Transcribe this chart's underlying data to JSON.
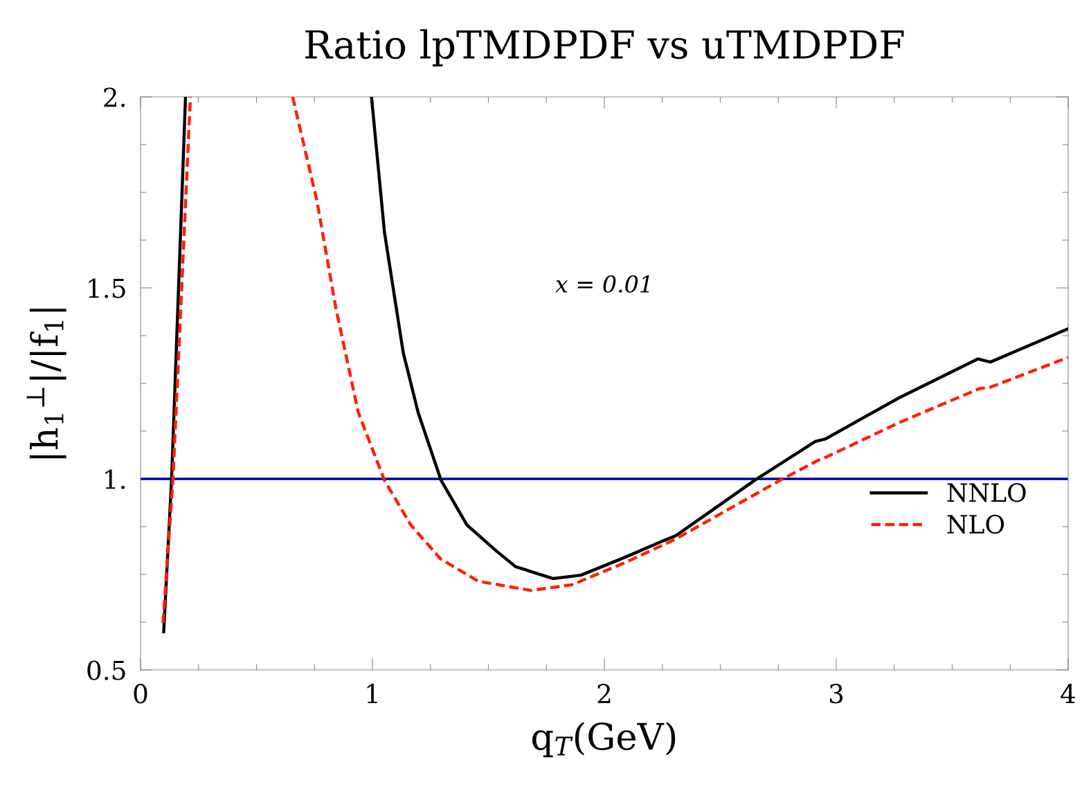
{
  "chart_data": {
    "type": "line",
    "title": "Ratio lpTMDPDF vs uTMDPDF",
    "xlabel": "q$_{T}$(GeV)",
    "ylabel": "|h$_{1}$$^{⊥}$|/|f$_{1}$|",
    "xlim": [
      0,
      4
    ],
    "xticks": [
      0,
      1,
      2,
      3,
      4
    ],
    "ylim": [
      0.5,
      2
    ],
    "yticks": [
      0.5,
      {
        "value": 1,
        "label": "1."
      },
      1.5,
      {
        "value": 2,
        "label": "2."
      }
    ],
    "grid": false,
    "legend": "bottom right",
    "annotations": [
      "x = 0.01"
    ],
    "ref_lines": [
      {
        "axis": "y",
        "value": 1,
        "color": "#0000aa",
        "line_style": "solid"
      }
    ],
    "series": [
      {
        "name": "NNLO",
        "color": "#000000",
        "line_style": "solid",
        "x": [
          0.1,
          0.134,
          0.194,
          0.5,
          0.996,
          1.052,
          1.133,
          1.197,
          1.296,
          1.408,
          1.537,
          1.618,
          1.78,
          1.899,
          2.09,
          2.25,
          2.31,
          2.65,
          2.91,
          2.955,
          3.27,
          3.61,
          3.665,
          4.0
        ],
        "values": [
          0.6,
          1.0,
          2.0,
          null,
          2.0,
          1.645,
          1.33,
          1.174,
          0.996,
          0.879,
          0.81,
          0.77,
          0.739,
          0.748,
          0.795,
          0.837,
          0.852,
          0.997,
          1.098,
          1.105,
          1.212,
          1.314,
          1.306,
          1.393
        ]
      },
      {
        "name": "NLO",
        "color": "#ff2000",
        "line_style": "dashed",
        "x": [
          0.097,
          0.14,
          0.215,
          0.4,
          0.656,
          0.761,
          0.842,
          0.939,
          1.052,
          1.166,
          1.295,
          1.457,
          1.684,
          1.861,
          2.09,
          2.306,
          2.76,
          2.92,
          2.96,
          3.27,
          3.62,
          3.66,
          4.0
        ],
        "values": [
          0.623,
          1.0,
          2.0,
          null,
          2.0,
          1.727,
          1.448,
          1.174,
          0.996,
          0.879,
          0.79,
          0.732,
          0.708,
          0.723,
          0.781,
          0.842,
          0.997,
          1.048,
          1.058,
          1.147,
          1.237,
          1.239,
          1.318
        ]
      }
    ]
  }
}
